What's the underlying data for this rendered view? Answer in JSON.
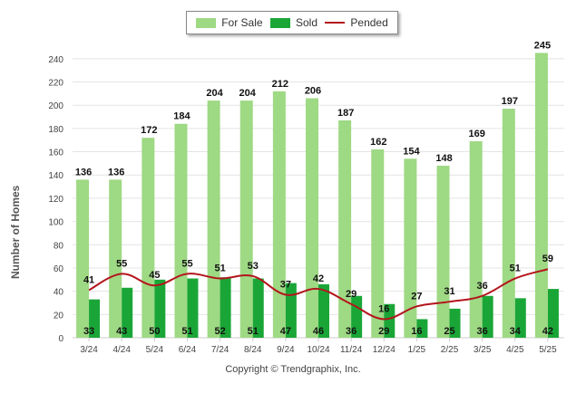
{
  "legend": {
    "for_sale": "For Sale",
    "sold": "Sold",
    "pended": "Pended"
  },
  "copyright": "Copyright © Trendgraphix, Inc.",
  "colors": {
    "for_sale": "#9ed984",
    "sold": "#1aa637",
    "pended": "#b3151c"
  },
  "chart_data": {
    "type": "bar",
    "ylabel": "Number of Homes",
    "xlabel": "",
    "ylim": [
      0,
      250
    ],
    "yticks": [
      0,
      20,
      40,
      60,
      80,
      100,
      120,
      140,
      160,
      180,
      200,
      220,
      240
    ],
    "grid": true,
    "legend_position": "top-center",
    "categories": [
      "3/24",
      "4/24",
      "5/24",
      "6/24",
      "7/24",
      "8/24",
      "9/24",
      "10/24",
      "11/24",
      "12/24",
      "1/25",
      "2/25",
      "3/25",
      "4/25",
      "5/25"
    ],
    "series": [
      {
        "name": "For Sale",
        "type": "bar",
        "values": [
          136,
          136,
          172,
          184,
          204,
          204,
          212,
          206,
          187,
          162,
          154,
          148,
          169,
          197,
          245
        ]
      },
      {
        "name": "Sold",
        "type": "bar",
        "values": [
          33,
          43,
          50,
          51,
          52,
          51,
          47,
          46,
          36,
          29,
          16,
          25,
          36,
          34,
          42
        ]
      },
      {
        "name": "Pended",
        "type": "line",
        "values": [
          41,
          55,
          45,
          55,
          51,
          53,
          37,
          42,
          29,
          16,
          27,
          31,
          36,
          51,
          59
        ]
      }
    ]
  }
}
